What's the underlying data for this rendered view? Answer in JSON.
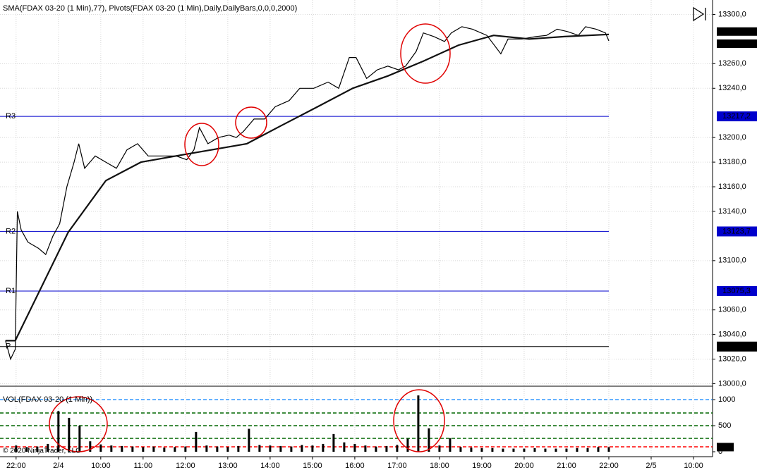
{
  "chart_data": [
    {
      "type": "line",
      "title": "SMA(FDAX 03-20 (1 Min),77),  Pivots(FDAX 03-20 (1 Min),Daily,DailyBars,0,0,0,2000)",
      "xlim": [
        -0.38,
        16.45
      ],
      "ylim": [
        12998,
        13310
      ],
      "grid": true,
      "yticks": [
        {
          "value": 13000,
          "label": "13000,0"
        },
        {
          "value": 13020,
          "label": "13020,0"
        },
        {
          "value": 13040,
          "label": "13040,0"
        },
        {
          "value": 13060,
          "label": "13060,0"
        },
        {
          "value": 13100,
          "label": "13100,0"
        },
        {
          "value": 13140,
          "label": "13140,0"
        },
        {
          "value": 13160,
          "label": "13160,0"
        },
        {
          "value": 13180,
          "label": "13180,0"
        },
        {
          "value": 13200,
          "label": "13200,0"
        },
        {
          "value": 13240,
          "label": "13240,0"
        },
        {
          "value": 13260,
          "label": "13260,0"
        },
        {
          "value": 13300,
          "label": "13300,0"
        }
      ],
      "series": [
        {
          "color": "#000000",
          "width": 1.2,
          "x": [
            -0.25,
            -0.13,
            -0.02,
            0.03,
            0.12,
            0.28,
            0.53,
            0.7,
            0.87,
            1.03,
            1.2,
            1.37,
            1.48,
            1.62,
            1.87,
            2.12,
            2.37,
            2.62,
            2.87,
            3.12,
            3.45,
            3.78,
            4.03,
            4.2,
            4.33,
            4.53,
            4.78,
            5.03,
            5.2,
            5.37,
            5.62,
            5.87,
            6.12,
            6.45,
            6.7,
            7.03,
            7.37,
            7.62,
            7.87,
            8.03,
            8.28,
            8.53,
            8.78,
            9.03,
            9.2,
            9.45,
            9.62,
            9.87,
            10.12,
            10.28,
            10.53,
            10.78,
            11.12,
            11.45,
            11.62,
            11.95,
            12.28,
            12.53,
            12.78,
            13.03,
            13.28,
            13.45,
            13.7,
            13.92,
            14.0
          ],
          "values": [
            13035,
            13020,
            13028,
            13140,
            13125,
            13115,
            13110,
            13105,
            13120,
            13130,
            13160,
            13180,
            13195,
            13175,
            13185,
            13180,
            13175,
            13190,
            13195,
            13185,
            13185,
            13185,
            13182,
            13190,
            13208,
            13195,
            13200,
            13202,
            13200,
            13205,
            13215,
            13215,
            13225,
            13230,
            13240,
            13240,
            13245,
            13240,
            13265,
            13265,
            13248,
            13255,
            13258,
            13255,
            13258,
            13270,
            13285,
            13282,
            13278,
            13285,
            13290,
            13288,
            13283,
            13268,
            13280,
            13280,
            13282,
            13283,
            13288,
            13286,
            13283,
            13290,
            13288,
            13285,
            13278.5
          ]
        },
        {
          "color": "#111111",
          "width": 2.2,
          "x": [
            -0.25,
            -0.02,
            1.23,
            2.12,
            2.95,
            3.78,
            4.62,
            5.45,
            6.28,
            7.12,
            7.95,
            8.78,
            9.62,
            10.45,
            11.28,
            12.12,
            12.95,
            14.0
          ],
          "values": [
            13035,
            13035,
            13123,
            13165,
            13180,
            13185,
            13190,
            13195,
            13210,
            13225,
            13240,
            13250,
            13262,
            13275,
            13283,
            13280,
            13282,
            13283.8
          ]
        }
      ],
      "pivots": [
        {
          "label": "R3",
          "value": 13217.2,
          "flag_label": "13217,2",
          "color": "#0000cc"
        },
        {
          "label": "R2",
          "value": 13123.7,
          "flag_label": "13123,7",
          "color": "#0000cc"
        },
        {
          "label": "R1",
          "value": 13075.3,
          "flag_label": "13075,3",
          "color": "#0000cc"
        },
        {
          "label": "P",
          "value": 13030.2,
          "flag_label": "13030,2",
          "color": "#000000"
        }
      ],
      "flags": [
        {
          "value": 13283.8,
          "label": "13283,8"
        },
        {
          "value": 13278.5,
          "label": "13278,5"
        }
      ]
    },
    {
      "type": "bar",
      "title": "VOL(FDAX 03-20 (1 Min))",
      "copyright": "© 2020 NinjaTrader, LLC",
      "color": "#000000",
      "xlim": [
        -0.38,
        16.45
      ],
      "ylim": [
        0,
        1230
      ],
      "grid": true,
      "yticks": [
        0,
        500,
        1000
      ],
      "xticks": [
        {
          "value": 0,
          "label": "22:00"
        },
        {
          "value": 1,
          "label": "2/4"
        },
        {
          "value": 2,
          "label": "10:00"
        },
        {
          "value": 3,
          "label": "11:00"
        },
        {
          "value": 4,
          "label": "12:00"
        },
        {
          "value": 5,
          "label": "13:00"
        },
        {
          "value": 6,
          "label": "14:00"
        },
        {
          "value": 7,
          "label": "15:00"
        },
        {
          "value": 8,
          "label": "16:00"
        },
        {
          "value": 9,
          "label": "17:00"
        },
        {
          "value": 10,
          "label": "18:00"
        },
        {
          "value": 11,
          "label": "19:00"
        },
        {
          "value": 12,
          "label": "20:00"
        },
        {
          "value": 13,
          "label": "21:00"
        },
        {
          "value": 14,
          "label": "22:00"
        },
        {
          "value": 15,
          "label": "2/5"
        },
        {
          "value": 16,
          "label": "10:00"
        }
      ],
      "reference_lines": [
        {
          "value": 1000,
          "color": "#3399ff"
        },
        {
          "value": 743,
          "color": "#006600"
        },
        {
          "value": 500,
          "color": "#006600"
        },
        {
          "value": 257,
          "color": "#006600"
        },
        {
          "value": 95,
          "color": "#ff0000"
        }
      ],
      "x": [
        0,
        0.25,
        0.5,
        0.75,
        1.0,
        1.25,
        1.5,
        1.75,
        2.0,
        2.25,
        2.5,
        2.75,
        3.0,
        3.25,
        3.5,
        3.75,
        4.0,
        4.25,
        4.5,
        4.75,
        5.0,
        5.25,
        5.5,
        5.75,
        6.0,
        6.25,
        6.5,
        6.75,
        7.0,
        7.25,
        7.5,
        7.75,
        8.0,
        8.25,
        8.5,
        8.75,
        9.0,
        9.25,
        9.5,
        9.75,
        10.0,
        10.25,
        10.5,
        10.75,
        11.0,
        11.25,
        11.5,
        11.75,
        12.0,
        12.25,
        12.5,
        12.75,
        13.0,
        13.25,
        13.5,
        13.75,
        14.0
      ],
      "values": [
        120,
        90,
        100,
        150,
        780,
        650,
        500,
        200,
        140,
        120,
        110,
        100,
        90,
        100,
        80,
        90,
        100,
        380,
        120,
        100,
        90,
        110,
        440,
        130,
        120,
        110,
        100,
        130,
        120,
        150,
        340,
        180,
        150,
        120,
        100,
        110,
        130,
        250,
        1080,
        450,
        120,
        260,
        90,
        80,
        70,
        70,
        60,
        60,
        60,
        70,
        60,
        60,
        60,
        70,
        70,
        90,
        89
      ]
    }
  ]
}
